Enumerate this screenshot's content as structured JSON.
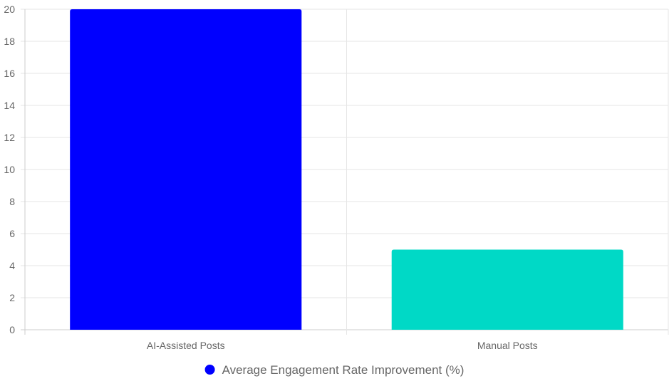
{
  "chart_data": {
    "type": "bar",
    "categories": [
      "AI-Assisted Posts",
      "Manual Posts"
    ],
    "series": [
      {
        "name": "Average Engagement Rate Improvement (%)",
        "values": [
          20,
          5
        ],
        "colors": [
          "#0000ff",
          "#00d9c6"
        ]
      }
    ],
    "ylim": [
      0,
      20
    ],
    "y_ticks": [
      "0",
      "2",
      "4",
      "6",
      "8",
      "10",
      "12",
      "14",
      "16",
      "18",
      "20"
    ],
    "grid": true,
    "legend": "bottom",
    "legend_marker_color": "#0000ff"
  }
}
